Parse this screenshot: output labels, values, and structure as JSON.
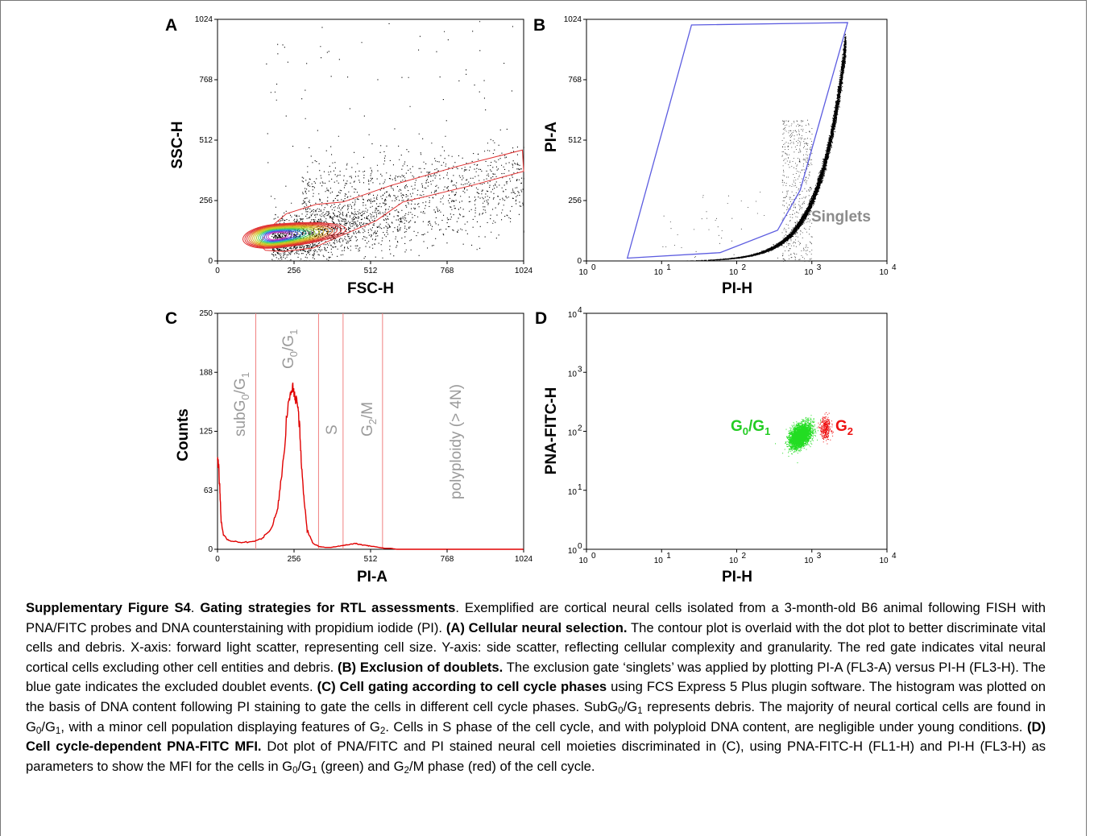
{
  "panels": {
    "A": {
      "letter": "A",
      "x_label": "FSC-H",
      "y_label": "SSC-H",
      "x_ticks": [
        "0",
        "256",
        "512",
        "768",
        "1024"
      ],
      "y_ticks": [
        "0",
        "256",
        "512",
        "768",
        "1024"
      ]
    },
    "B": {
      "letter": "B",
      "x_label": "PI-H",
      "y_label": "PI-A",
      "x_ticks": [
        "10",
        "10",
        "10",
        "10",
        "10"
      ],
      "x_tick_exponents": [
        "0",
        "1",
        "2",
        "3",
        "4"
      ],
      "y_ticks": [
        "0",
        "256",
        "512",
        "768",
        "1024"
      ],
      "gate_label": "Singlets"
    },
    "C": {
      "letter": "C",
      "x_label": "PI-A",
      "y_label": "Counts",
      "x_ticks": [
        "0",
        "256",
        "512",
        "768",
        "1024"
      ],
      "y_ticks": [
        "0",
        "63",
        "125",
        "188",
        "250"
      ],
      "region_labels": {
        "subg": "subG",
        "g0g1": "G",
        "s": "S",
        "g2m": "G",
        "poly": "polyploidy  (> 4N)"
      }
    },
    "D": {
      "letter": "D",
      "x_label": "PI-H",
      "y_label": "PNA-FITC-H",
      "x_ticks": [
        "10",
        "10",
        "10",
        "10",
        "10"
      ],
      "x_tick_exponents": [
        "0",
        "1",
        "2",
        "3",
        "4"
      ],
      "y_ticks": [
        "10",
        "10",
        "10",
        "10",
        "10"
      ],
      "y_tick_exponents": [
        "0",
        "1",
        "2",
        "3",
        "4"
      ],
      "label_green": "G",
      "label_red": "G"
    }
  },
  "chart_data": [
    {
      "panel": "A",
      "type": "scatter",
      "xlabel": "FSC-H",
      "ylabel": "SSC-H",
      "xlim": [
        0,
        1024
      ],
      "ylim": [
        0,
        1024
      ],
      "overlay": "contour",
      "density_peak": [
        190,
        105
      ],
      "gate_color": "#e03030"
    },
    {
      "panel": "B",
      "type": "scatter",
      "xlabel": "PI-H",
      "ylabel": "PI-A",
      "xscale": "log",
      "xlim": [
        1,
        10000
      ],
      "ylim": [
        0,
        1024
      ],
      "gate_color": "#5555dd",
      "gate_polygon": [
        [
          3.5,
          12
        ],
        [
          60,
          35
        ],
        [
          350,
          130
        ],
        [
          700,
          300
        ],
        [
          3000,
          1010
        ],
        [
          25,
          1000
        ]
      ],
      "annotation": "Singlets"
    },
    {
      "panel": "C",
      "type": "line",
      "xlabel": "PI-A",
      "ylabel": "Counts",
      "xlim": [
        0,
        1024
      ],
      "ylim": [
        0,
        250
      ],
      "line_color": "#e00000",
      "region_boundaries": [
        128,
        338,
        420,
        552
      ],
      "x": [
        0,
        4,
        8,
        12,
        20,
        40,
        80,
        120,
        150,
        180,
        200,
        215,
        230,
        240,
        250,
        258,
        265,
        272,
        280,
        290,
        300,
        320,
        340,
        360,
        380,
        400,
        420,
        440,
        460,
        480,
        500,
        520,
        540,
        560,
        580,
        600,
        640,
        700,
        800,
        900,
        1024
      ],
      "y": [
        94,
        90,
        60,
        30,
        15,
        9,
        7,
        8,
        12,
        22,
        40,
        80,
        130,
        162,
        170,
        165,
        160,
        140,
        95,
        50,
        20,
        6,
        3,
        2,
        2,
        3,
        4,
        5,
        6,
        5,
        4,
        3,
        2,
        1,
        1,
        0,
        0,
        0,
        0,
        0,
        0
      ]
    },
    {
      "panel": "D",
      "type": "scatter",
      "xlabel": "PI-H",
      "ylabel": "PNA-FITC-H",
      "xscale": "log",
      "yscale": "log",
      "xlim": [
        1,
        10000
      ],
      "ylim": [
        1,
        10000
      ],
      "series": [
        {
          "color": "#22dd22",
          "center": [
            700,
            85
          ]
        },
        {
          "color": "#ee1111",
          "center": [
            1500,
            110
          ]
        }
      ]
    }
  ],
  "caption": {
    "title_bold": "Supplementary Figure S4",
    "sep1": ". ",
    "title_rest_bold": "Gating strategies for RTL assessments",
    "intro": ".  Exemplified are cortical neural cells isolated from a 3-month-old B6 animal following FISH with PNA/FITC probes and DNA counterstaining with propidium iodide (PI). ",
    "a_bold": "(A) Cellular neural selection.",
    "a_text": " The contour plot is overlaid with the dot plot to better discriminate vital cells and debris. X-axis: forward light scatter, representing cell size. Y-axis: side scatter, reflecting cellular complexity and granularity. The red gate indicates vital neural cortical cells excluding other cell entities and debris. ",
    "b_bold": "(B) Exclusion of doublets.",
    "b_text": " The exclusion gate ‘singlets’ was applied by plotting PI-A (FL3-A) versus PI-H (FL3-H). The blue gate indicates the excluded doublet events. ",
    "c_bold": "(C) Cell gating according to cell cycle phases",
    "c_text1": " using FCS Express 5 Plus plugin software. The histogram was plotted on the basis of DNA content following PI staining to gate the cells in different cell cycle phases. SubG",
    "c_text2": " represents debris. The majority of neural cortical cells are found in G",
    "c_text3": ", with a minor cell population displaying features of G",
    "c_text4": ". Cells in S phase of the cell cycle, and with polyploid DNA content, are negligible under young conditions. ",
    "d_bold": "(D) Cell cycle-dependent PNA-FITC MFI.",
    "d_text1": " Dot plot of PNA/FITC and PI stained neural cell moieties discriminated in (C), using PNA-FITC-H (FL1-H) and PI-H (FL3-H) as parameters to show the MFI for the cells in G",
    "d_text2": " (green) and G",
    "d_text3": "/M phase (red) of the cell cycle.",
    "sub0": "0",
    "sub1": "1",
    "sub2": "2",
    "slash_g": "/G"
  }
}
